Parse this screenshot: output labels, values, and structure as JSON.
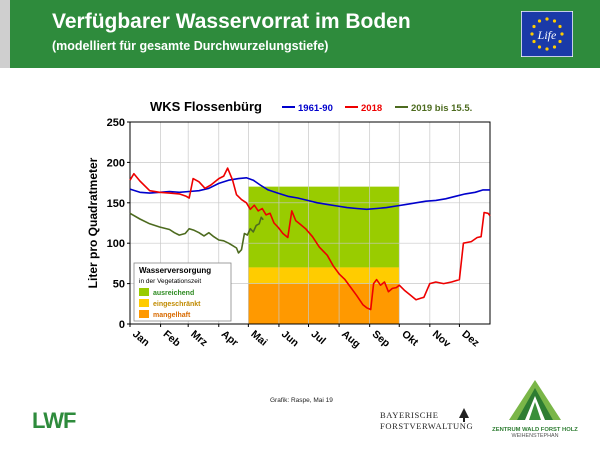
{
  "header": {
    "title": "Verfügbarer Wasservorrat im Boden",
    "subtitle": "(modelliert für gesamte Durchwurzelungstiefe)",
    "background_color": "#2e8b3c",
    "eu_logo_text": "Life"
  },
  "chart_data": {
    "type": "line",
    "title": "WKS Flossenbürg",
    "ylabel": "Liter pro Quadratmeter",
    "xlabel": "",
    "ylim": [
      0,
      250
    ],
    "yticks": [
      0,
      50,
      100,
      150,
      200,
      250
    ],
    "xlim": [
      0,
      365
    ],
    "x_unit": "day of year",
    "months": [
      "Jan",
      "Feb",
      "Mrz",
      "Apr",
      "Mai",
      "Jun",
      "Jul",
      "Aug",
      "Sep",
      "Okt",
      "Nov",
      "Dez"
    ],
    "month_start_days": [
      0,
      31,
      59,
      90,
      120,
      151,
      181,
      212,
      243,
      273,
      304,
      334
    ],
    "grid": true,
    "legend_position": "top",
    "series": [
      {
        "name": "1961-90",
        "color": "#0000cc",
        "points": [
          [
            0,
            167
          ],
          [
            10,
            163
          ],
          [
            20,
            162
          ],
          [
            30,
            163
          ],
          [
            40,
            164
          ],
          [
            50,
            163
          ],
          [
            60,
            164
          ],
          [
            70,
            165
          ],
          [
            80,
            168
          ],
          [
            90,
            174
          ],
          [
            100,
            178
          ],
          [
            110,
            180
          ],
          [
            118,
            181
          ],
          [
            125,
            178
          ],
          [
            132,
            172
          ],
          [
            140,
            166
          ],
          [
            150,
            162
          ],
          [
            160,
            158
          ],
          [
            170,
            156
          ],
          [
            180,
            153
          ],
          [
            190,
            150
          ],
          [
            200,
            148
          ],
          [
            210,
            146
          ],
          [
            220,
            144
          ],
          [
            230,
            143
          ],
          [
            240,
            142
          ],
          [
            250,
            143
          ],
          [
            260,
            144
          ],
          [
            270,
            146
          ],
          [
            280,
            148
          ],
          [
            290,
            150
          ],
          [
            300,
            152
          ],
          [
            310,
            153
          ],
          [
            320,
            155
          ],
          [
            330,
            158
          ],
          [
            340,
            161
          ],
          [
            350,
            163
          ],
          [
            358,
            166
          ],
          [
            365,
            166
          ]
        ]
      },
      {
        "name": "2018",
        "color": "#ee0000",
        "points": [
          [
            0,
            178
          ],
          [
            4,
            186
          ],
          [
            10,
            177
          ],
          [
            20,
            165
          ],
          [
            30,
            163
          ],
          [
            40,
            162
          ],
          [
            50,
            161
          ],
          [
            57,
            158
          ],
          [
            60,
            156
          ],
          [
            64,
            180
          ],
          [
            70,
            176
          ],
          [
            76,
            168
          ],
          [
            82,
            172
          ],
          [
            90,
            180
          ],
          [
            95,
            183
          ],
          [
            99,
            193
          ],
          [
            104,
            178
          ],
          [
            108,
            160
          ],
          [
            113,
            154
          ],
          [
            118,
            150
          ],
          [
            122,
            142
          ],
          [
            126,
            147
          ],
          [
            130,
            140
          ],
          [
            134,
            143
          ],
          [
            138,
            135
          ],
          [
            142,
            137
          ],
          [
            146,
            125
          ],
          [
            150,
            120
          ],
          [
            155,
            112
          ],
          [
            160,
            107
          ],
          [
            164,
            140
          ],
          [
            168,
            128
          ],
          [
            172,
            124
          ],
          [
            178,
            118
          ],
          [
            185,
            108
          ],
          [
            192,
            95
          ],
          [
            200,
            85
          ],
          [
            206,
            72
          ],
          [
            212,
            62
          ],
          [
            218,
            55
          ],
          [
            224,
            45
          ],
          [
            230,
            35
          ],
          [
            236,
            24
          ],
          [
            240,
            20
          ],
          [
            244,
            18
          ],
          [
            247,
            50
          ],
          [
            250,
            55
          ],
          [
            254,
            48
          ],
          [
            258,
            52
          ],
          [
            262,
            40
          ],
          [
            266,
            44
          ],
          [
            270,
            45
          ],
          [
            273,
            48
          ],
          [
            278,
            42
          ],
          [
            284,
            36
          ],
          [
            290,
            30
          ],
          [
            295,
            32
          ],
          [
            298,
            33
          ],
          [
            304,
            50
          ],
          [
            310,
            52
          ],
          [
            318,
            50
          ],
          [
            326,
            52
          ],
          [
            334,
            55
          ],
          [
            338,
            100
          ],
          [
            346,
            102
          ],
          [
            352,
            107
          ],
          [
            356,
            108
          ],
          [
            359,
            138
          ],
          [
            363,
            137
          ],
          [
            365,
            134
          ]
        ]
      },
      {
        "name": "2019 bis 15.5.",
        "color": "#4d6b1f",
        "points": [
          [
            0,
            137
          ],
          [
            10,
            130
          ],
          [
            20,
            124
          ],
          [
            30,
            120
          ],
          [
            40,
            117
          ],
          [
            45,
            113
          ],
          [
            50,
            110
          ],
          [
            56,
            112
          ],
          [
            60,
            118
          ],
          [
            65,
            116
          ],
          [
            70,
            113
          ],
          [
            75,
            109
          ],
          [
            80,
            113
          ],
          [
            85,
            108
          ],
          [
            90,
            104
          ],
          [
            95,
            103
          ],
          [
            100,
            100
          ],
          [
            104,
            97
          ],
          [
            108,
            94
          ],
          [
            110,
            88
          ],
          [
            113,
            92
          ],
          [
            116,
            112
          ],
          [
            119,
            110
          ],
          [
            122,
            118
          ],
          [
            125,
            114
          ],
          [
            128,
            122
          ],
          [
            131,
            124
          ],
          [
            133,
            132
          ],
          [
            135,
            129
          ]
        ]
      }
    ],
    "water_supply_box": {
      "title": "Wasserversorgung",
      "subtitle": "in der Vegetationszeit",
      "x_start_day": 120,
      "x_end_day": 273,
      "bands": [
        {
          "label": "ausreichend",
          "low": 70,
          "high": 170,
          "color": "#99cc00"
        },
        {
          "label": "eingeschränkt",
          "low": 50,
          "high": 70,
          "color": "#ffcc00"
        },
        {
          "label": "mangelhaft",
          "low": 0,
          "high": 50,
          "color": "#ff9900"
        }
      ]
    }
  },
  "footer": {
    "credit": "Grafik: Raspe, Mai 19",
    "lwf_logo": "LWF",
    "bayer_line1": "BAYERISCHE",
    "bayer_line2": "FORSTVERWALTUNG",
    "zentrum_line1": "ZENTRUM WALD FORST HOLZ",
    "zentrum_line2": "WEIHENSTEPHAN"
  }
}
